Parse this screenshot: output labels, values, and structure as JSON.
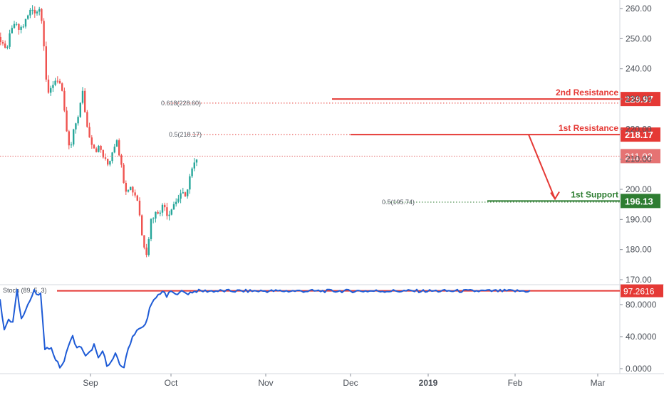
{
  "chart_data": [
    {
      "type": "candlestick",
      "yaxis_ticks": [
        260,
        250,
        240,
        230,
        220,
        210,
        200,
        190,
        180,
        170
      ],
      "yaxis_tick_labels": [
        "260.00",
        "250.00",
        "240.00",
        "230.00",
        "220.00",
        "210.00",
        "200.00",
        "190.00",
        "180.00",
        "170.00"
      ],
      "ylim": [
        168,
        263
      ],
      "xaxis_labels": [
        "Sep",
        "Oct",
        "Nov",
        "Dec",
        "2019",
        "Feb",
        "Mar"
      ],
      "grid": false,
      "series": [
        {
          "x": [
            -30,
            -24,
            -18,
            -12,
            -6,
            0,
            6,
            12,
            18,
            24,
            30,
            36,
            42,
            48,
            54,
            58,
            62,
            66,
            72,
            78,
            84,
            90,
            96,
            102,
            108,
            114,
            120,
            126,
            132,
            138,
            144,
            150,
            156,
            162,
            168,
            174,
            180,
            186,
            192,
            198,
            204,
            210,
            216,
            222,
            228,
            234,
            240,
            246,
            252,
            258,
            264,
            270,
            276
          ],
          "values": [
            232,
            236,
            241,
            246,
            252,
            248,
            246,
            251,
            255,
            253,
            254,
            257,
            260,
            259,
            260,
            255,
            238,
            231,
            235,
            237,
            234,
            222,
            212,
            220,
            225,
            232,
            221,
            216,
            213,
            214,
            210,
            208,
            213,
            217,
            208,
            200,
            201,
            199,
            196,
            183,
            179,
            190,
            192,
            193,
            195,
            191,
            195,
            196,
            199,
            197,
            204,
            208,
            210
          ]
        }
      ],
      "levels": [
        {
          "value": 229.97,
          "label": "2nd Resistance",
          "color": "#e53935"
        },
        {
          "value": 218.17,
          "label": "1st Resistance",
          "color": "#e53935"
        },
        {
          "value": 196.13,
          "label": "1st Support",
          "color": "#2e7d32"
        }
      ],
      "current_price": {
        "value": 211.02,
        "label": "211.02",
        "color": "#e57373"
      },
      "fib_levels": [
        {
          "value": 228.6,
          "label": "0.618(228.60)"
        },
        {
          "value": 218.17,
          "label": "0.5(218.17)"
        },
        {
          "value": 195.74,
          "label": "0.5(195.74)"
        }
      ],
      "level_value_labels": [
        "229.97",
        "218.17",
        "196.13"
      ]
    },
    {
      "type": "line",
      "indicator_label": "Stoch (89, 5, 3)",
      "yaxis_ticks": [
        80,
        40,
        0
      ],
      "yaxis_tick_labels": [
        "80.0000",
        "40.0000",
        "0.0000"
      ],
      "ylim": [
        -3,
        104
      ],
      "series": [
        {
          "x": [
            -30,
            -24,
            -18,
            -12,
            -6,
            0,
            6,
            12,
            18,
            24,
            30,
            36,
            42,
            48,
            54,
            58,
            62,
            66,
            72,
            78,
            84,
            90,
            96,
            102,
            108,
            114,
            120,
            126,
            132,
            138,
            144,
            150,
            156,
            162,
            168,
            174,
            180,
            186,
            192,
            198,
            204,
            210,
            216,
            222,
            228,
            234,
            240,
            246,
            252,
            258,
            264,
            270,
            276
          ],
          "values": [
            70,
            82,
            88,
            80,
            96,
            85,
            50,
            60,
            58,
            97,
            62,
            75,
            85,
            97,
            90,
            97,
            20,
            28,
            25,
            12,
            2,
            8,
            30,
            40,
            25,
            28,
            15,
            20,
            30,
            12,
            22,
            5,
            8,
            18,
            5,
            2,
            25,
            40,
            48,
            50,
            55,
            75,
            85,
            92,
            97,
            90,
            97,
            92,
            97,
            95,
            94,
            96,
            97
          ]
        }
      ],
      "level": {
        "value": 97.2616,
        "label": "97.2616",
        "color": "#e53935"
      }
    }
  ]
}
